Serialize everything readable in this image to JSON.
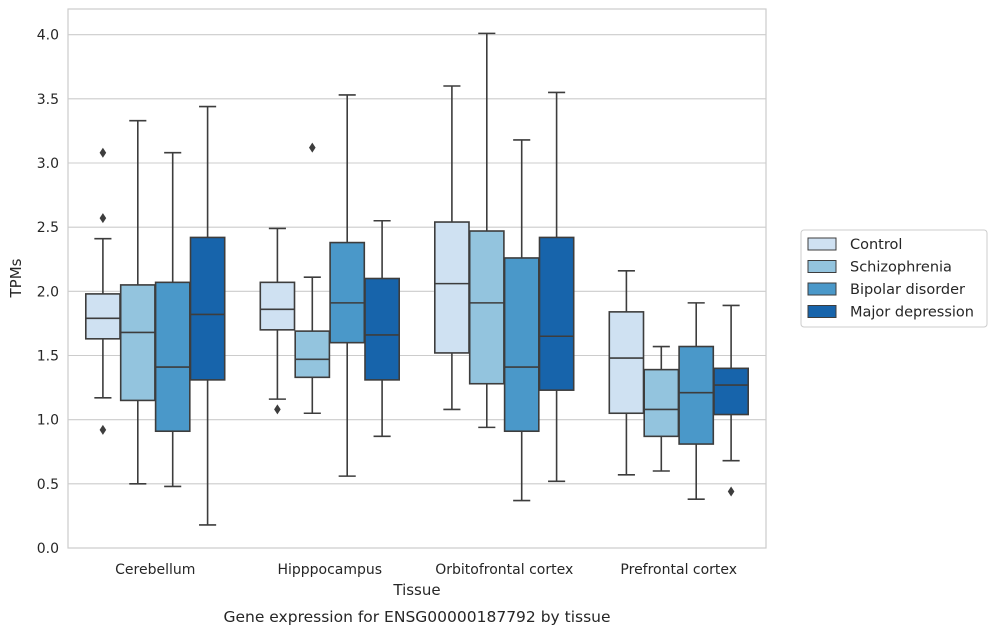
{
  "caption": "Gene expression for ENSG00000187792 by tissue",
  "chart_data": {
    "type": "box",
    "xlabel": "Tissue",
    "ylabel": "TPMs",
    "ylim": [
      0,
      4.2
    ],
    "yticks": [
      "0.0",
      "0.5",
      "1.0",
      "1.5",
      "2.0",
      "2.5",
      "3.0",
      "3.5",
      "4.0"
    ],
    "grid": "horizontal",
    "legend_position": "right",
    "categories": [
      "Cerebellum",
      "Hipppocampus",
      "Orbitofrontal cortex",
      "Prefrontal cortex"
    ],
    "series": [
      {
        "name": "Control",
        "color": "#cfe1f2",
        "boxes": [
          {
            "whisker_low": 1.17,
            "q1": 1.63,
            "median": 1.79,
            "q3": 1.98,
            "whisker_high": 2.41,
            "outliers": [
              0.92,
              2.57,
              3.08
            ]
          },
          {
            "whisker_low": 1.16,
            "q1": 1.7,
            "median": 1.86,
            "q3": 2.07,
            "whisker_high": 2.49,
            "outliers": [
              1.08
            ]
          },
          {
            "whisker_low": 1.08,
            "q1": 1.52,
            "median": 2.06,
            "q3": 2.54,
            "whisker_high": 3.6,
            "outliers": []
          },
          {
            "whisker_low": 0.57,
            "q1": 1.05,
            "median": 1.48,
            "q3": 1.84,
            "whisker_high": 2.16,
            "outliers": []
          }
        ]
      },
      {
        "name": "Schizophrenia",
        "color": "#93c4de",
        "boxes": [
          {
            "whisker_low": 0.5,
            "q1": 1.15,
            "median": 1.68,
            "q3": 2.05,
            "whisker_high": 3.33,
            "outliers": []
          },
          {
            "whisker_low": 1.05,
            "q1": 1.33,
            "median": 1.47,
            "q3": 1.69,
            "whisker_high": 2.11,
            "outliers": [
              3.12
            ]
          },
          {
            "whisker_low": 0.94,
            "q1": 1.28,
            "median": 1.91,
            "q3": 2.47,
            "whisker_high": 4.01,
            "outliers": []
          },
          {
            "whisker_low": 0.6,
            "q1": 0.87,
            "median": 1.08,
            "q3": 1.39,
            "whisker_high": 1.57,
            "outliers": []
          }
        ]
      },
      {
        "name": "Bipolar disorder",
        "color": "#4a98c9",
        "boxes": [
          {
            "whisker_low": 0.48,
            "q1": 0.91,
            "median": 1.41,
            "q3": 2.07,
            "whisker_high": 3.08,
            "outliers": []
          },
          {
            "whisker_low": 0.56,
            "q1": 1.6,
            "median": 1.91,
            "q3": 2.38,
            "whisker_high": 3.53,
            "outliers": []
          },
          {
            "whisker_low": 0.37,
            "q1": 0.91,
            "median": 1.41,
            "q3": 2.26,
            "whisker_high": 3.18,
            "outliers": []
          },
          {
            "whisker_low": 0.38,
            "q1": 0.81,
            "median": 1.21,
            "q3": 1.57,
            "whisker_high": 1.91,
            "outliers": []
          }
        ]
      },
      {
        "name": "Major depression",
        "color": "#1764ab",
        "boxes": [
          {
            "whisker_low": 0.18,
            "q1": 1.31,
            "median": 1.82,
            "q3": 2.42,
            "whisker_high": 3.44,
            "outliers": []
          },
          {
            "whisker_low": 0.87,
            "q1": 1.31,
            "median": 1.66,
            "q3": 2.1,
            "whisker_high": 2.55,
            "outliers": []
          },
          {
            "whisker_low": 0.52,
            "q1": 1.23,
            "median": 1.65,
            "q3": 2.42,
            "whisker_high": 3.55,
            "outliers": []
          },
          {
            "whisker_low": 0.68,
            "q1": 1.04,
            "median": 1.27,
            "q3": 1.4,
            "whisker_high": 1.89,
            "outliers": [
              0.44
            ]
          }
        ]
      }
    ]
  }
}
